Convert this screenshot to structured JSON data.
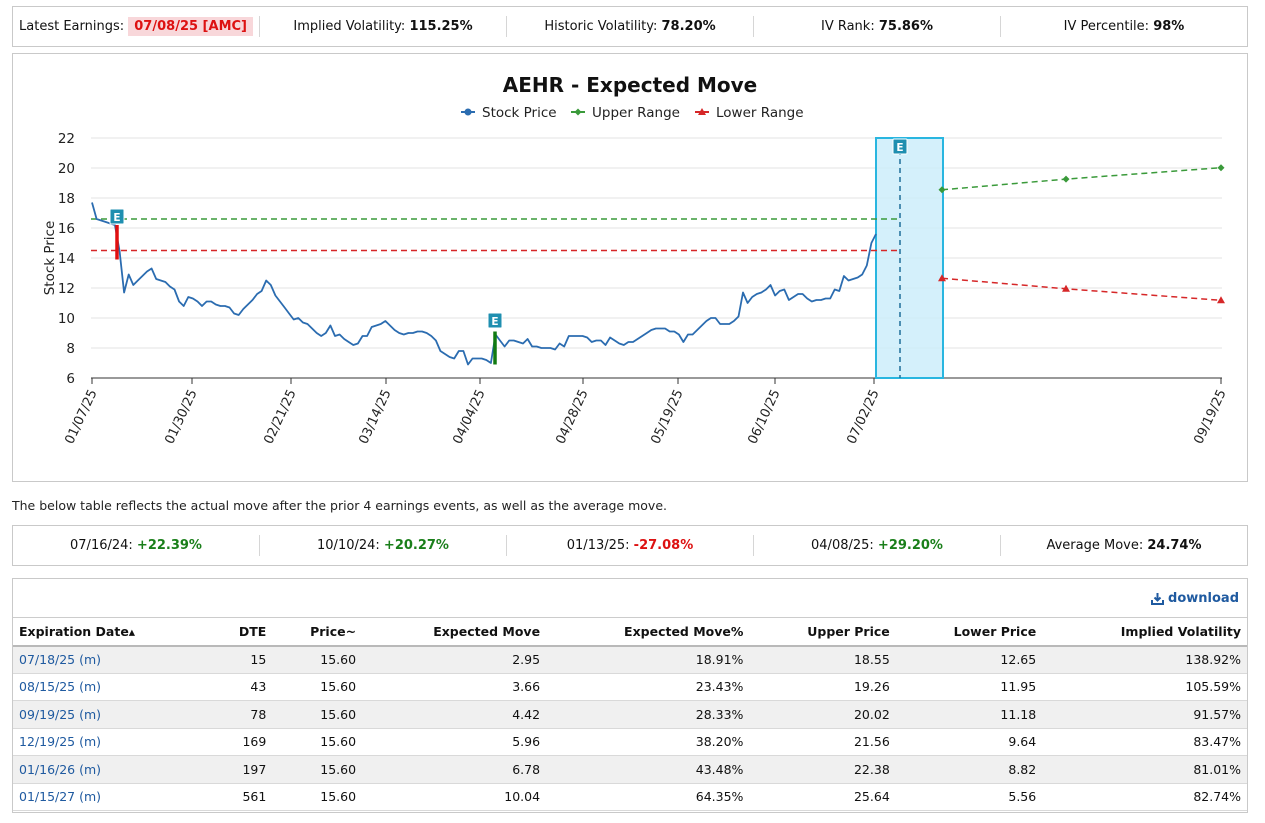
{
  "stats": {
    "earnings_label": "Latest Earnings:",
    "earnings_value": "07/08/25 [AMC]",
    "iv_label": "Implied Volatility:",
    "iv_value": "115.25%",
    "hv_label": "Historic Volatility:",
    "hv_value": "78.20%",
    "ivrank_label": "IV Rank:",
    "ivrank_value": "75.86%",
    "ivpct_label": "IV Percentile:",
    "ivpct_value": "98%"
  },
  "chart_data": {
    "type": "line",
    "title": "AEHR - Expected Move",
    "ylabel": "Stock Price",
    "ylim": [
      6,
      22
    ],
    "yticks": [
      "6",
      "8",
      "10",
      "12",
      "14",
      "16",
      "18",
      "20",
      "22"
    ],
    "xticks": [
      "01/07/25",
      "01/30/25",
      "02/21/25",
      "03/14/25",
      "04/04/25",
      "04/28/25",
      "05/19/25",
      "06/10/25",
      "07/02/25",
      "09/19/25"
    ],
    "legend": [
      "Stock Price",
      "Upper Range",
      "Lower Range"
    ],
    "legend_placement": "top-center",
    "earnings_marker": "E",
    "colors": {
      "stock": "#2b6cb0",
      "upper": "#3a9a3a",
      "lower": "#d62728",
      "highlight": "#c9ecfa",
      "highlight_border": "#29b6e0",
      "marker": "#1f8fb0"
    },
    "stock_price": [
      17.7,
      16.6,
      16.5,
      16.4,
      16.3,
      16.2,
      14.5,
      11.7,
      12.9,
      12.2,
      12.5,
      12.8,
      13.1,
      13.3,
      12.6,
      12.5,
      12.4,
      12.1,
      11.9,
      11.1,
      10.8,
      11.4,
      11.3,
      11.1,
      10.8,
      11.1,
      11.1,
      10.9,
      10.8,
      10.8,
      10.7,
      10.3,
      10.2,
      10.6,
      10.9,
      11.2,
      11.6,
      11.8,
      12.5,
      12.2,
      11.5,
      11.1,
      10.7,
      10.3,
      9.9,
      10.0,
      9.7,
      9.6,
      9.3,
      9.0,
      8.8,
      9.0,
      9.5,
      8.8,
      8.9,
      8.6,
      8.4,
      8.2,
      8.3,
      8.8,
      8.8,
      9.4,
      9.5,
      9.6,
      9.8,
      9.5,
      9.2,
      9.0,
      8.9,
      9.0,
      9.0,
      9.1,
      9.1,
      9.0,
      8.8,
      8.5,
      7.8,
      7.6,
      7.4,
      7.3,
      7.8,
      7.8,
      6.9,
      7.3,
      7.3,
      7.3,
      7.2,
      7.0,
      8.9,
      8.5,
      8.1,
      8.5,
      8.5,
      8.4,
      8.3,
      8.6,
      8.1,
      8.1,
      8.0,
      8.0,
      8.0,
      7.9,
      8.3,
      8.1,
      8.8,
      8.8,
      8.8,
      8.8,
      8.7,
      8.4,
      8.5,
      8.5,
      8.2,
      8.7,
      8.5,
      8.3,
      8.2,
      8.4,
      8.4,
      8.6,
      8.8,
      9.0,
      9.2,
      9.3,
      9.3,
      9.3,
      9.1,
      9.1,
      8.9,
      8.4,
      8.9,
      8.9,
      9.2,
      9.5,
      9.8,
      10.0,
      10.0,
      9.6,
      9.6,
      9.6,
      9.8,
      10.1,
      11.7,
      11.0,
      11.4,
      11.6,
      11.7,
      11.9,
      12.2,
      11.5,
      11.8,
      11.9,
      11.2,
      11.4,
      11.6,
      11.6,
      11.3,
      11.1,
      11.2,
      11.2,
      11.3,
      11.3,
      11.9,
      11.8,
      12.8,
      12.5,
      12.6,
      12.7,
      12.9,
      13.5,
      15.0,
      15.6
    ],
    "earnings_dates": [
      "01/13/25",
      "04/08/25",
      "07/08/25"
    ],
    "upper_range": [
      {
        "x": "07/18/25",
        "y": 18.55
      },
      {
        "x": "08/15/25",
        "y": 19.26
      },
      {
        "x": "09/19/25",
        "y": 20.02
      }
    ],
    "lower_range": [
      {
        "x": "07/18/25",
        "y": 12.65
      },
      {
        "x": "08/15/25",
        "y": 11.95
      },
      {
        "x": "09/19/25",
        "y": 11.18
      }
    ],
    "upper_hist": 16.6,
    "lower_hist": 14.5,
    "e1_range": [
      13.9,
      16.2
    ],
    "e2_range": [
      6.9,
      9.1
    ]
  },
  "note": "The below table reflects the actual move after the prior 4 earnings events, as well as the average move.",
  "moves": [
    {
      "date": "07/16/24:",
      "value": "+22.39%",
      "dir": "pos"
    },
    {
      "date": "10/10/24:",
      "value": "+20.27%",
      "dir": "pos"
    },
    {
      "date": "01/13/25:",
      "value": "-27.08%",
      "dir": "neg"
    },
    {
      "date": "04/08/25:",
      "value": "+29.20%",
      "dir": "pos"
    },
    {
      "date": "Average Move:",
      "value": "24.74%",
      "dir": "avg"
    }
  ],
  "download_label": "download",
  "table": {
    "headers": [
      "Expiration Date",
      "DTE",
      "Price",
      "Expected Move",
      "Expected Move%",
      "Upper Price",
      "Lower Price",
      "Implied Volatility"
    ],
    "sort_marks": [
      "▴",
      "~"
    ],
    "rows": [
      [
        "07/18/25 (m)",
        "15",
        "15.60",
        "2.95",
        "18.91%",
        "18.55",
        "12.65",
        "138.92%"
      ],
      [
        "08/15/25 (m)",
        "43",
        "15.60",
        "3.66",
        "23.43%",
        "19.26",
        "11.95",
        "105.59%"
      ],
      [
        "09/19/25 (m)",
        "78",
        "15.60",
        "4.42",
        "28.33%",
        "20.02",
        "11.18",
        "91.57%"
      ],
      [
        "12/19/25 (m)",
        "169",
        "15.60",
        "5.96",
        "38.20%",
        "21.56",
        "9.64",
        "83.47%"
      ],
      [
        "01/16/26 (m)",
        "197",
        "15.60",
        "6.78",
        "43.48%",
        "22.38",
        "8.82",
        "81.01%"
      ],
      [
        "01/15/27 (m)",
        "561",
        "15.60",
        "10.04",
        "64.35%",
        "25.64",
        "5.56",
        "82.74%"
      ]
    ]
  }
}
